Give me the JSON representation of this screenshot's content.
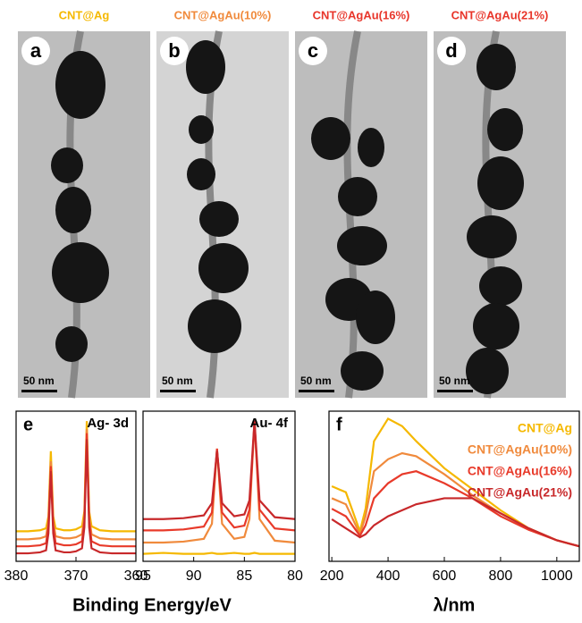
{
  "tem_panels": [
    {
      "header": "CNT@Ag",
      "header_color": "#f5b800",
      "letter": "a",
      "scale_bar": "50 nm"
    },
    {
      "header": "CNT@AgAu(10%)",
      "header_color": "#f08a3c",
      "letter": "b",
      "scale_bar": "50 nm"
    },
    {
      "header": "CNT@AgAu(16%)",
      "header_color": "#e8352a",
      "letter": "c",
      "scale_bar": "50 nm"
    },
    {
      "header": "CNT@AgAu(21%)",
      "header_color": "#e8352a",
      "letter": "d",
      "scale_bar": "50 nm"
    }
  ],
  "xlabel_shared": "Binding Energy/eV",
  "chart_data": [
    {
      "type": "line",
      "panel_label": "e",
      "title": "Ag- 3d",
      "x": [
        380,
        378,
        376,
        375,
        374.6,
        374.2,
        373.8,
        373.4,
        372,
        371,
        370,
        369,
        368.6,
        368.2,
        367.8,
        367.4,
        366,
        364,
        362,
        360
      ],
      "xlim": [
        380,
        360
      ],
      "xticks": [
        380,
        370,
        360
      ],
      "ylim": [
        0,
        150
      ],
      "series": [
        {
          "name": "CNT@Ag",
          "color": "#f5b800",
          "values": [
            30,
            30,
            31,
            33,
            45,
            110,
            45,
            33,
            31,
            31,
            32,
            35,
            50,
            140,
            50,
            35,
            31,
            30,
            30,
            30
          ]
        },
        {
          "name": "CNT@AgAu(10%)",
          "color": "#f08a3c",
          "values": [
            22,
            22,
            23,
            25,
            40,
            100,
            40,
            25,
            23,
            23,
            24,
            27,
            45,
            132,
            45,
            27,
            23,
            22,
            22,
            22
          ]
        },
        {
          "name": "CNT@AgAu(16%)",
          "color": "#e83a2a",
          "values": [
            15,
            15,
            16,
            18,
            35,
            95,
            35,
            18,
            16,
            16,
            17,
            20,
            40,
            128,
            40,
            20,
            16,
            15,
            15,
            15
          ]
        },
        {
          "name": "CNT@AgAu(21%)",
          "color": "#c8282a",
          "values": [
            8,
            8,
            9,
            11,
            28,
            90,
            28,
            11,
            9,
            9,
            10,
            13,
            34,
            122,
            34,
            13,
            9,
            8,
            8,
            8
          ]
        }
      ]
    },
    {
      "type": "line",
      "title": "Au- 4f",
      "x": [
        95,
        93,
        91,
        89,
        88.2,
        87.7,
        87.2,
        86,
        85,
        84.5,
        84,
        83.5,
        82,
        80
      ],
      "xlim": [
        95,
        80
      ],
      "xticks": [
        95,
        90,
        85,
        80
      ],
      "ylim": [
        0,
        160
      ],
      "series": [
        {
          "name": "CNT@Ag",
          "color": "#f5b800",
          "values": [
            8,
            9,
            8,
            8,
            9,
            8,
            8,
            9,
            8,
            8,
            9,
            8,
            8,
            8
          ]
        },
        {
          "name": "CNT@AgAu(10%)",
          "color": "#f08a3c",
          "values": [
            20,
            20,
            21,
            24,
            40,
            120,
            40,
            24,
            26,
            45,
            150,
            45,
            22,
            20
          ]
        },
        {
          "name": "CNT@AgAu(16%)",
          "color": "#e83a2a",
          "values": [
            33,
            33,
            34,
            37,
            52,
            120,
            52,
            36,
            38,
            55,
            148,
            55,
            35,
            33
          ]
        },
        {
          "name": "CNT@AgAu(21%)",
          "color": "#c8282a",
          "values": [
            45,
            45,
            46,
            49,
            62,
            118,
            62,
            48,
            50,
            65,
            150,
            65,
            47,
            45
          ]
        }
      ]
    },
    {
      "type": "line",
      "panel_label": "f",
      "xlabel": "λ/nm",
      "x": [
        200,
        250,
        300,
        320,
        350,
        400,
        450,
        500,
        600,
        700,
        800,
        900,
        1000,
        1080
      ],
      "xlim": [
        190,
        1080
      ],
      "xticks": [
        200,
        400,
        600,
        800,
        1000
      ],
      "ylim": [
        0,
        100
      ],
      "legend": "upper right",
      "series": [
        {
          "name": "CNT@Ag",
          "color": "#f5b800",
          "values": [
            50,
            46,
            20,
            35,
            80,
            95,
            90,
            80,
            62,
            48,
            34,
            22,
            14,
            10
          ]
        },
        {
          "name": "CNT@AgAu(10%)",
          "color": "#f08a3c",
          "values": [
            42,
            38,
            18,
            30,
            60,
            68,
            72,
            70,
            58,
            44,
            32,
            22,
            14,
            10
          ]
        },
        {
          "name": "CNT@AgAu(16%)",
          "color": "#e83a2a",
          "values": [
            35,
            30,
            17,
            24,
            42,
            52,
            58,
            60,
            52,
            42,
            30,
            21,
            14,
            10
          ]
        },
        {
          "name": "CNT@AgAu(21%)",
          "color": "#c8282a",
          "values": [
            28,
            22,
            16,
            18,
            24,
            30,
            34,
            38,
            42,
            42,
            32,
            22,
            14,
            10
          ]
        }
      ]
    }
  ]
}
